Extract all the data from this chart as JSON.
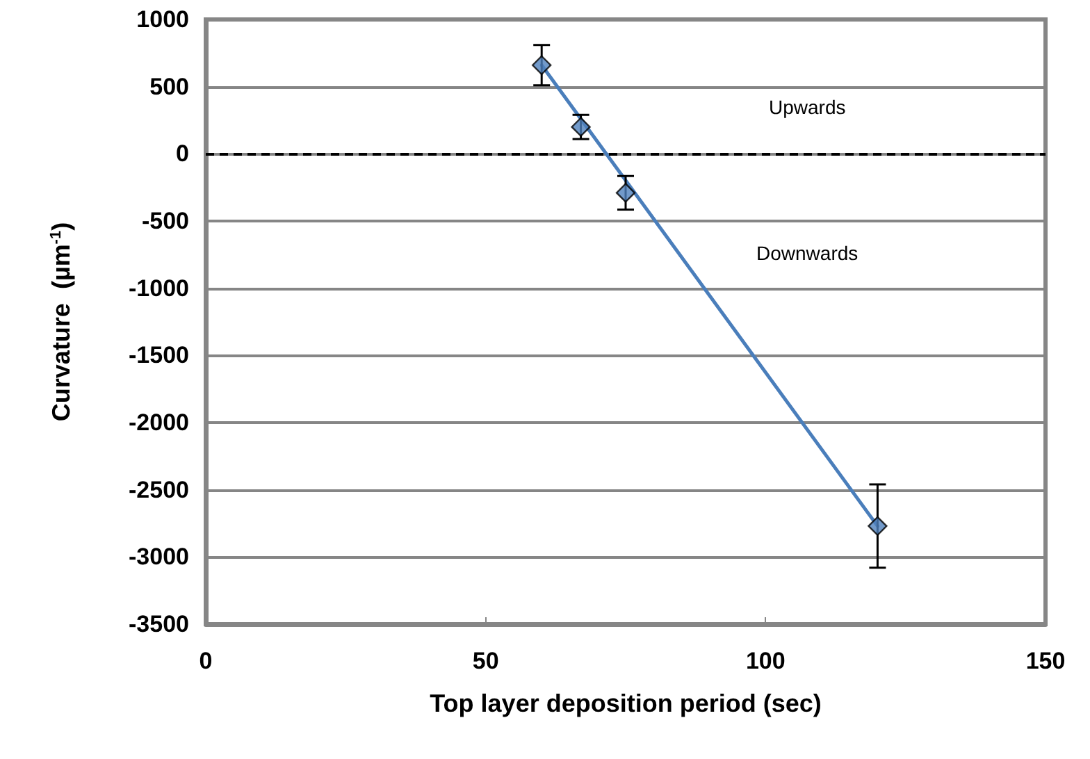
{
  "chart_data": {
    "type": "scatter",
    "xlabel": "Top layer deposition period (sec)",
    "ylabel": "Curvature  (µm$^{-1}$)",
    "xlim": [
      0,
      150
    ],
    "xticks": [
      0,
      50,
      100,
      150
    ],
    "ylim": [
      -3500,
      1000
    ],
    "yticks": [
      -3500,
      -3000,
      -2500,
      -2000,
      -1500,
      -1000,
      -500,
      0,
      500,
      1000
    ],
    "series": [
      {
        "type": "line",
        "color": "#4a7ebb",
        "x": [
          60,
          120
        ],
        "values": [
          660,
          -2770
        ],
        "marker": "none"
      },
      {
        "color": "#4f81bd",
        "x": [
          60,
          67,
          75,
          120
        ],
        "values": [
          660,
          200,
          -290,
          -2770
        ],
        "errors": [
          150,
          90,
          125,
          310
        ],
        "marker": "diamond"
      }
    ],
    "ref_lines": [
      {
        "axis": "y",
        "value": 0,
        "color": "#000000",
        "line_style": "dashed"
      }
    ],
    "annotations": [
      "Upwards",
      "Downwards"
    ],
    "grid": "y"
  }
}
